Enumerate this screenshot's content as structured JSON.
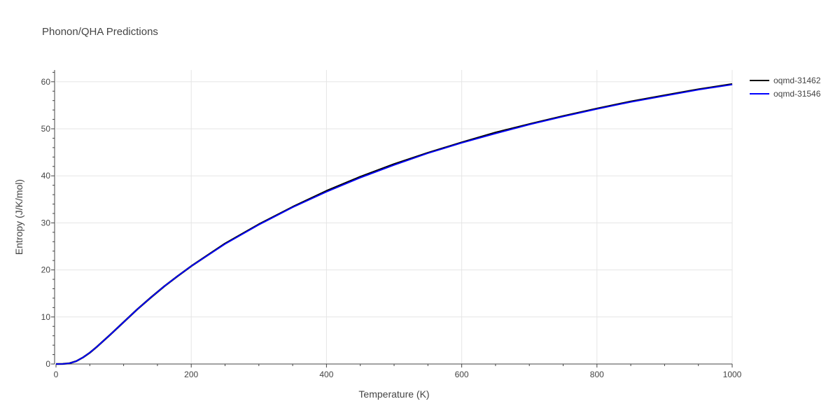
{
  "chart_data": {
    "type": "line",
    "title": "Phonon/QHA Predictions",
    "xlabel": "Temperature (K)",
    "ylabel": "Entropy (J/K/mol)",
    "xlim": [
      0,
      1000
    ],
    "ylim": [
      0,
      62.5
    ],
    "x_ticks": [
      0,
      200,
      400,
      600,
      800,
      1000
    ],
    "y_ticks": [
      0,
      10,
      20,
      30,
      40,
      50,
      60
    ],
    "grid": true,
    "legend_position": "top-right",
    "series": [
      {
        "name": "oqmd-31462",
        "color": "#000000",
        "x": [
          0,
          10,
          20,
          30,
          40,
          50,
          60,
          70,
          80,
          100,
          120,
          140,
          160,
          180,
          200,
          250,
          300,
          350,
          400,
          450,
          500,
          550,
          600,
          650,
          700,
          750,
          800,
          850,
          900,
          950,
          1000
        ],
        "y": [
          0,
          0.02,
          0.15,
          0.6,
          1.4,
          2.4,
          3.6,
          4.9,
          6.2,
          8.9,
          11.6,
          14.1,
          16.5,
          18.7,
          20.8,
          25.6,
          29.7,
          33.4,
          36.8,
          39.8,
          42.5,
          44.9,
          47.1,
          49.2,
          51.0,
          52.7,
          54.3,
          55.8,
          57.1,
          58.4,
          59.5
        ]
      },
      {
        "name": "oqmd-31546",
        "color": "#0000ff",
        "x": [
          0,
          10,
          20,
          30,
          40,
          50,
          60,
          70,
          80,
          100,
          120,
          140,
          160,
          180,
          200,
          250,
          300,
          350,
          400,
          450,
          500,
          550,
          600,
          650,
          700,
          750,
          800,
          850,
          900,
          950,
          1000
        ],
        "y": [
          0,
          0.02,
          0.15,
          0.6,
          1.4,
          2.4,
          3.6,
          4.9,
          6.2,
          8.9,
          11.6,
          14.1,
          16.5,
          18.7,
          20.8,
          25.5,
          29.6,
          33.3,
          36.6,
          39.6,
          42.3,
          44.8,
          47.0,
          49.0,
          50.9,
          52.6,
          54.2,
          55.7,
          57.0,
          58.3,
          59.4
        ]
      }
    ]
  }
}
